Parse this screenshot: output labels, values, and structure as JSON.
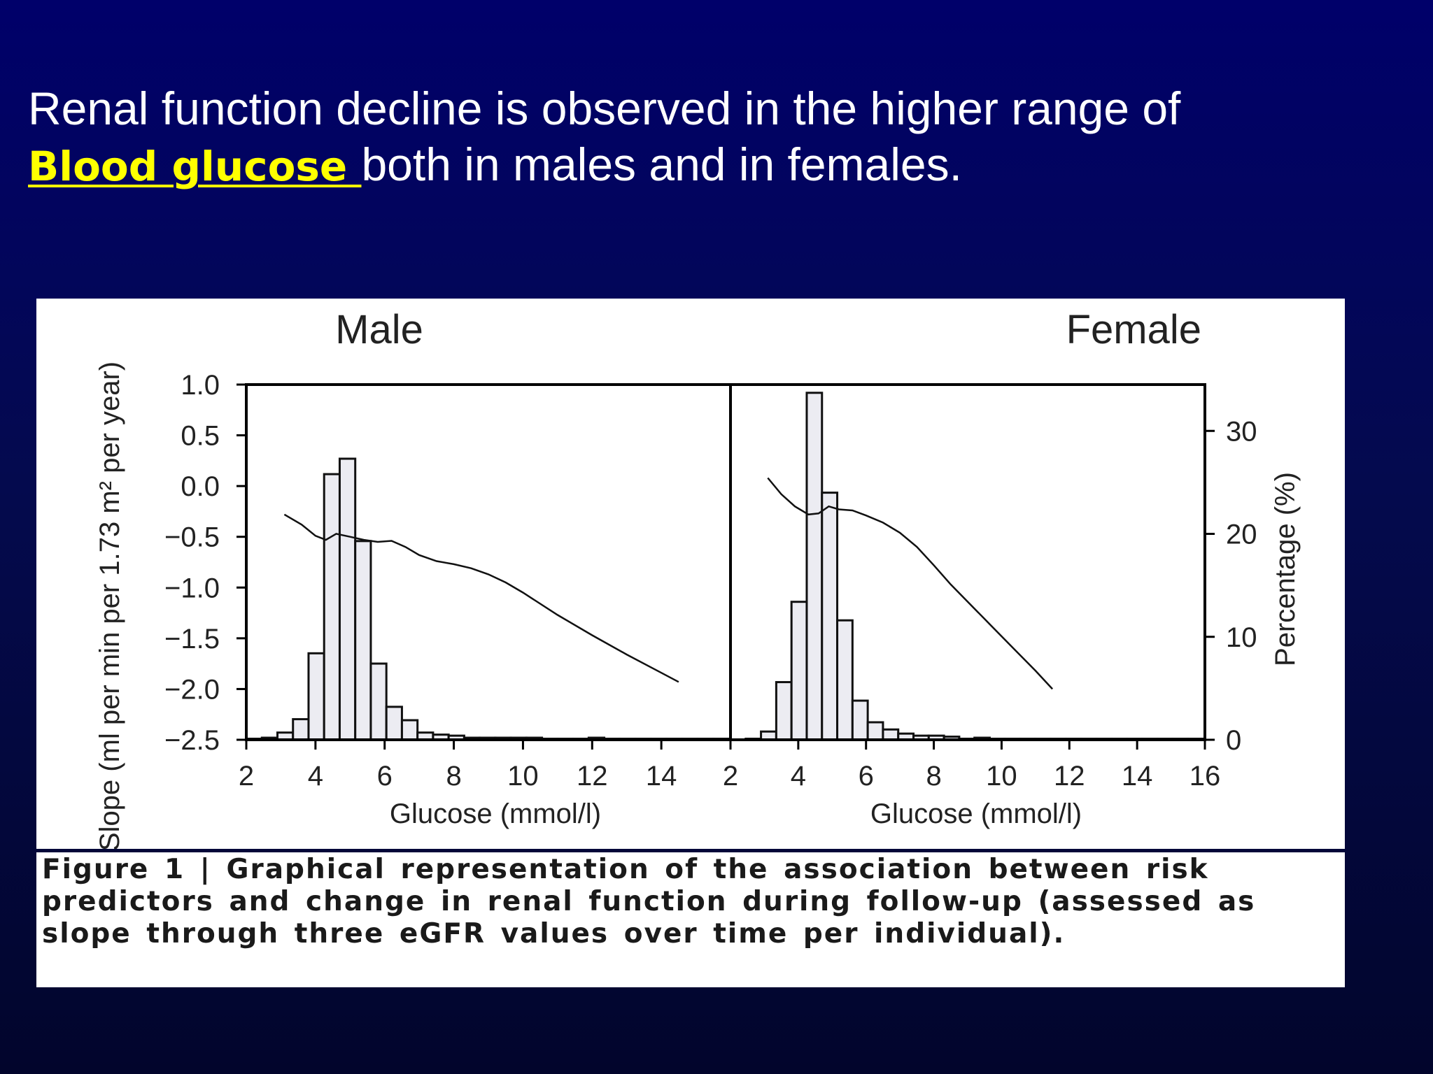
{
  "headline": {
    "line1": "Renal function decline is observed in the higher range of",
    "highlight": "Blood glucose ",
    "line2_rest": "both in males and in females."
  },
  "caption": {
    "text": "Figure 1 | Graphical representation of the association between risk predictors and change in renal function during follow-up (assessed as slope through three eGFR values over time per individual)."
  },
  "colors": {
    "background": "#00006a",
    "highlight": "#ffff00",
    "bar_fill": "#ececf2"
  },
  "chart_data": [
    {
      "type": "bar",
      "title": "Male",
      "xlabel": "Glucose (mmol/l)",
      "ylabel": "Slope (ml per min per 1.73 m² per year)",
      "xlim": [
        2,
        16
      ],
      "ylim": [
        -2.5,
        1.0
      ],
      "y2lim": [
        0,
        34.5
      ],
      "x_ticks": [
        "2",
        "4",
        "6",
        "8",
        "10",
        "12",
        "14"
      ],
      "y_ticks": [
        "1.0",
        "0.5",
        "0.0",
        "−0.5",
        "−1.0",
        "−1.5",
        "−2.0",
        "−2.5"
      ],
      "histogram": {
        "bin_width": 0.45,
        "bin_starts": [
          2.0,
          2.45,
          2.9,
          3.35,
          3.8,
          4.25,
          4.7,
          5.15,
          5.6,
          6.05,
          6.5,
          6.95,
          7.4,
          7.85,
          8.3,
          8.75,
          9.2,
          9.65,
          10.1,
          10.55,
          11.0,
          11.45,
          11.9,
          12.35,
          12.8,
          13.25,
          13.7,
          14.15,
          14.6,
          15.05,
          15.5
        ],
        "percentages": [
          0.1,
          0.2,
          0.7,
          2.0,
          8.4,
          25.8,
          27.3,
          19.3,
          7.4,
          3.2,
          1.9,
          0.7,
          0.5,
          0.4,
          0.2,
          0.2,
          0.2,
          0.2,
          0.2,
          0.1,
          0.1,
          0.1,
          0.2,
          0.1,
          0.1,
          0.1,
          0.1,
          0.1,
          0.1,
          0.1,
          0.1
        ]
      },
      "slope_curve": {
        "x": [
          3.1,
          3.6,
          4.0,
          4.3,
          4.6,
          5.0,
          5.4,
          5.8,
          6.2,
          6.6,
          7.0,
          7.5,
          8.0,
          8.5,
          9.0,
          9.5,
          10.0,
          11.0,
          12.0,
          13.0,
          14.0,
          14.5
        ],
        "y": [
          -0.28,
          -0.38,
          -0.49,
          -0.53,
          -0.47,
          -0.5,
          -0.53,
          -0.55,
          -0.54,
          -0.6,
          -0.68,
          -0.74,
          -0.77,
          -0.81,
          -0.87,
          -0.95,
          -1.05,
          -1.27,
          -1.47,
          -1.66,
          -1.84,
          -1.93
        ]
      }
    },
    {
      "type": "bar",
      "title": "Female",
      "xlabel": "Glucose (mmol/l)",
      "y2label": "Percentage (%)",
      "xlim": [
        2,
        16
      ],
      "ylim": [
        -2.5,
        1.0
      ],
      "y2lim": [
        0,
        34.5
      ],
      "x_ticks": [
        "2",
        "4",
        "6",
        "8",
        "10",
        "12",
        "14",
        "16"
      ],
      "y2_ticks": [
        "30",
        "20",
        "10",
        "0"
      ],
      "histogram": {
        "bin_width": 0.45,
        "bin_starts": [
          2.0,
          2.45,
          2.9,
          3.35,
          3.8,
          4.25,
          4.7,
          5.15,
          5.6,
          6.05,
          6.5,
          6.95,
          7.4,
          7.85,
          8.3,
          8.75,
          9.2,
          9.65,
          10.1,
          10.55,
          11.0,
          11.45,
          11.9,
          12.35,
          12.8,
          13.25,
          13.7,
          14.15,
          14.6,
          15.05,
          15.5
        ],
        "percentages": [
          0.0,
          0.1,
          0.8,
          5.6,
          13.4,
          33.7,
          24.0,
          11.6,
          3.8,
          1.7,
          1.0,
          0.6,
          0.4,
          0.4,
          0.3,
          0.1,
          0.2,
          0.1,
          0.1,
          0.1,
          0.1,
          0.1,
          0.1,
          0.1,
          0.1,
          0.1,
          0.1,
          0.1,
          0.1,
          0.1,
          0.1
        ]
      },
      "slope_curve": {
        "x": [
          3.1,
          3.5,
          3.9,
          4.3,
          4.6,
          4.9,
          5.2,
          5.6,
          6.0,
          6.5,
          7.0,
          7.5,
          8.0,
          8.5,
          9.0,
          9.5,
          10.0,
          10.5,
          11.0,
          11.5
        ],
        "y": [
          0.08,
          -0.08,
          -0.2,
          -0.28,
          -0.27,
          -0.2,
          -0.23,
          -0.24,
          -0.29,
          -0.36,
          -0.46,
          -0.6,
          -0.78,
          -0.97,
          -1.14,
          -1.31,
          -1.48,
          -1.65,
          -1.82,
          -2.0
        ]
      }
    }
  ]
}
